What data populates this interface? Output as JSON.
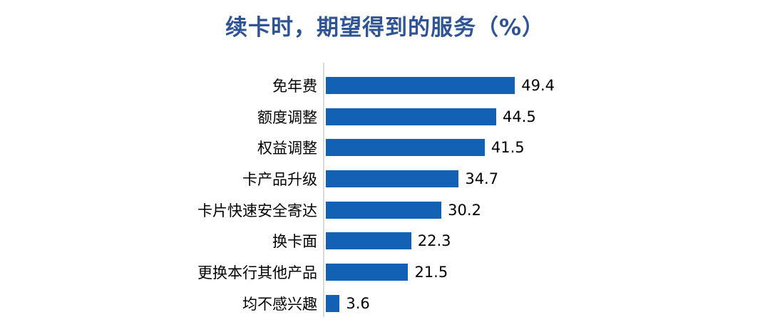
{
  "title": "续卡时，期望得到的服务（%）",
  "colors": {
    "bar": "#1261B5",
    "title": "#2F5496",
    "axis_line": "#D9D9D9",
    "category_label": "#000000",
    "value_label": "#000000",
    "background": "#FFFFFF"
  },
  "chart_data": {
    "type": "bar",
    "orientation": "horizontal",
    "title": "续卡时，期望得到的服务（%）",
    "categories": [
      "免年费",
      "额度调整",
      "权益调整",
      "卡产品升级",
      "卡片快速安全寄达",
      "换卡面",
      "更换本行其他产品",
      "均不感兴趣"
    ],
    "values": [
      49.4,
      44.5,
      41.5,
      34.7,
      30.2,
      22.3,
      21.5,
      3.6
    ],
    "xlabel": "",
    "ylabel": "",
    "xlim": [
      0,
      55
    ],
    "grid": false,
    "legend": "none",
    "value_labels_shown": true,
    "unit": "%"
  }
}
